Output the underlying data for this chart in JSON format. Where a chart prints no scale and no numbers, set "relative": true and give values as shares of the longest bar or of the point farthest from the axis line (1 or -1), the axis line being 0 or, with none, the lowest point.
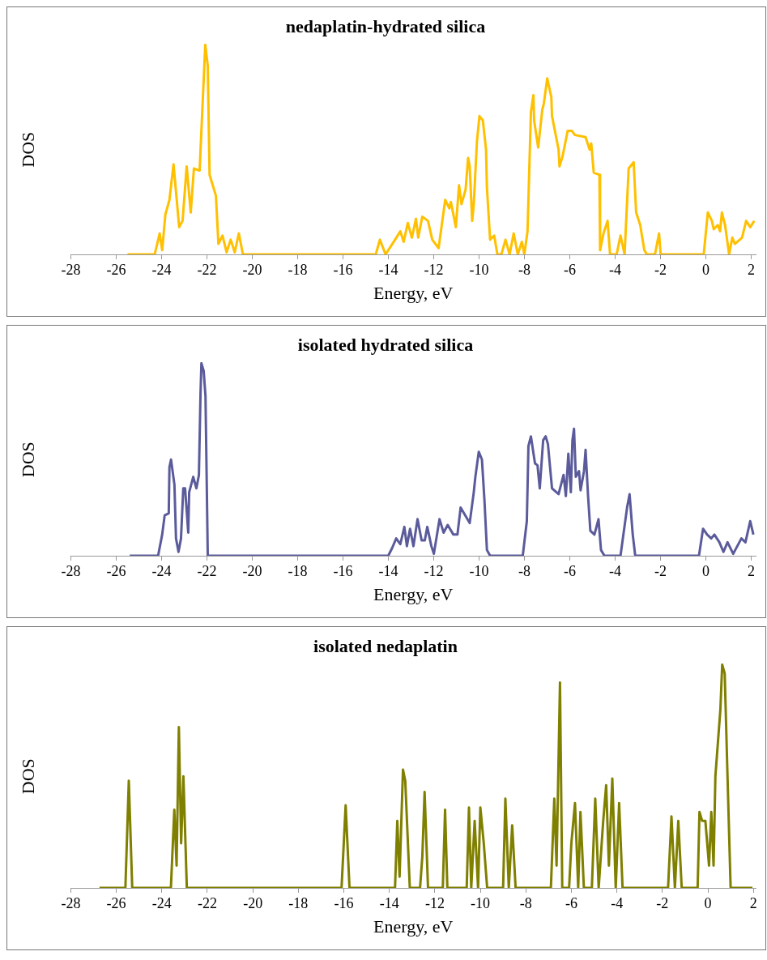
{
  "chart_data": [
    {
      "type": "line",
      "title": "nedaplatin-hydrated silica",
      "xlabel": "Energy, eV",
      "ylabel": "DOS",
      "relative": true,
      "color": "#ffc000",
      "marker": "none",
      "line_style": "solid",
      "xlim": [
        -28,
        2.2
      ],
      "xticks": [
        -28,
        -26,
        -24,
        -22,
        -20,
        -18,
        -16,
        -14,
        -12,
        -10,
        -8,
        -6,
        -4,
        -2,
        0,
        2
      ],
      "x": [
        -25.5,
        -24.3,
        -24.08,
        -23.97,
        -23.83,
        -23.65,
        -23.47,
        -23.22,
        -23.07,
        -22.89,
        -22.71,
        -22.57,
        -22.32,
        -22.17,
        -22.07,
        -21.96,
        -21.88,
        -21.6,
        -21.49,
        -21.31,
        -21.13,
        -20.95,
        -20.77,
        -20.59,
        -20.41,
        -14.55,
        -14.37,
        -14.12,
        -13.7,
        -13.47,
        -13.32,
        -13.14,
        -12.96,
        -12.78,
        -12.68,
        -12.5,
        -12.25,
        -12.06,
        -11.78,
        -11.49,
        -11.31,
        -11.24,
        -11.02,
        -10.88,
        -10.77,
        -10.59,
        -10.48,
        -10.41,
        -10.3,
        -10.23,
        -10.09,
        -9.98,
        -9.83,
        -9.69,
        -9.65,
        -9.51,
        -9.33,
        -9.19,
        -9.01,
        -8.83,
        -8.65,
        -8.47,
        -8.29,
        -8.11,
        -8.0,
        -7.86,
        -7.71,
        -7.6,
        -7.57,
        -7.39,
        -7.21,
        -7.14,
        -6.99,
        -6.81,
        -6.78,
        -6.49,
        -6.45,
        -6.31,
        -6.09,
        -5.91,
        -5.77,
        -5.3,
        -5.12,
        -5.05,
        -4.94,
        -4.69,
        -4.66,
        -4.51,
        -4.33,
        -4.22,
        -3.93,
        -3.76,
        -3.58,
        -3.4,
        -3.18,
        -3.07,
        -2.89,
        -2.71,
        -2.6,
        -2.24,
        -2.06,
        -1.99,
        -0.09,
        0.09,
        0.27,
        0.35,
        0.53,
        0.63,
        0.71,
        0.85,
        1.03,
        1.17,
        1.28,
        1.6,
        1.78,
        1.96,
        2.14
      ],
      "values": [
        0,
        0,
        0.1,
        0.02,
        0.19,
        0.26,
        0.43,
        0.13,
        0.16,
        0.42,
        0.2,
        0.41,
        0.4,
        0.76,
        1.0,
        0.9,
        0.38,
        0.28,
        0.05,
        0.09,
        0.01,
        0.07,
        0.01,
        0.1,
        0,
        0,
        0.07,
        0,
        0.07,
        0.11,
        0.06,
        0.15,
        0.08,
        0.17,
        0.08,
        0.18,
        0.16,
        0.07,
        0.03,
        0.26,
        0.22,
        0.25,
        0.13,
        0.33,
        0.24,
        0.31,
        0.46,
        0.42,
        0.16,
        0.24,
        0.54,
        0.66,
        0.64,
        0.5,
        0.32,
        0.07,
        0.09,
        0,
        0,
        0.07,
        0,
        0.1,
        0,
        0.06,
        0,
        0.11,
        0.68,
        0.76,
        0.64,
        0.51,
        0.69,
        0.72,
        0.84,
        0.75,
        0.66,
        0.5,
        0.42,
        0.47,
        0.59,
        0.59,
        0.57,
        0.56,
        0.5,
        0.53,
        0.39,
        0.38,
        0.02,
        0.1,
        0.16,
        0,
        0,
        0.09,
        0,
        0.41,
        0.44,
        0.2,
        0.14,
        0.02,
        0,
        0,
        0.1,
        0,
        0,
        0.2,
        0.16,
        0.12,
        0.14,
        0.11,
        0.2,
        0.14,
        0,
        0.08,
        0.05,
        0.08,
        0.16,
        0.13,
        0.16
      ]
    },
    {
      "type": "line",
      "title": "isolated hydrated silica",
      "xlabel": "Energy, eV",
      "ylabel": "DOS",
      "relative": true,
      "color": "#5b5b9b",
      "marker": "none",
      "line_style": "solid",
      "xlim": [
        -28,
        2.2
      ],
      "xticks": [
        -28,
        -26,
        -24,
        -22,
        -20,
        -18,
        -16,
        -14,
        -12,
        -10,
        -8,
        -6,
        -4,
        -2,
        0,
        2
      ],
      "x": [
        -25.4,
        -24.15,
        -23.97,
        -23.86,
        -23.68,
        -23.65,
        -23.58,
        -23.43,
        -23.36,
        -23.25,
        -23.14,
        -23.04,
        -22.96,
        -22.82,
        -22.78,
        -22.6,
        -22.46,
        -22.35,
        -22.28,
        -22.24,
        -22.14,
        -22.06,
        -21.99,
        -21.96,
        -14.0,
        -13.83,
        -13.65,
        -13.47,
        -13.29,
        -13.18,
        -13.04,
        -12.89,
        -12.71,
        -12.53,
        -12.39,
        -12.28,
        -12.1,
        -11.99,
        -11.74,
        -11.56,
        -11.38,
        -11.13,
        -10.95,
        -10.81,
        -10.41,
        -10.23,
        -10.16,
        -10.01,
        -9.87,
        -9.76,
        -9.65,
        -9.51,
        -8.07,
        -7.89,
        -7.82,
        -7.71,
        -7.53,
        -7.42,
        -7.32,
        -7.17,
        -7.06,
        -6.96,
        -6.78,
        -6.49,
        -6.27,
        -6.17,
        -6.06,
        -5.95,
        -5.88,
        -5.81,
        -5.73,
        -5.59,
        -5.52,
        -5.37,
        -5.3,
        -5.19,
        -5.09,
        -4.91,
        -4.73,
        -4.62,
        -4.47,
        -3.76,
        -3.47,
        -3.36,
        -3.22,
        -3.11,
        -0.3,
        -0.12,
        0.06,
        0.24,
        0.38,
        0.6,
        0.78,
        0.96,
        1.21,
        1.57,
        1.75,
        1.96,
        2.1
      ],
      "values": [
        0,
        0,
        0.11,
        0.21,
        0.22,
        0.46,
        0.5,
        0.37,
        0.09,
        0.02,
        0.09,
        0.35,
        0.35,
        0.12,
        0.33,
        0.41,
        0.35,
        0.42,
        0.84,
        1.0,
        0.96,
        0.83,
        0.25,
        0,
        0,
        0.04,
        0.09,
        0.06,
        0.15,
        0.05,
        0.14,
        0.05,
        0.19,
        0.08,
        0.08,
        0.15,
        0.05,
        0.01,
        0.19,
        0.12,
        0.16,
        0.11,
        0.11,
        0.25,
        0.17,
        0.33,
        0.41,
        0.54,
        0.5,
        0.29,
        0.03,
        0,
        0,
        0.18,
        0.57,
        0.62,
        0.48,
        0.47,
        0.35,
        0.6,
        0.62,
        0.58,
        0.35,
        0.32,
        0.42,
        0.31,
        0.53,
        0.33,
        0.6,
        0.66,
        0.41,
        0.44,
        0.34,
        0.44,
        0.55,
        0.31,
        0.13,
        0.11,
        0.19,
        0.03,
        0,
        0,
        0.25,
        0.32,
        0.11,
        0,
        0,
        0.14,
        0.11,
        0.09,
        0.11,
        0.07,
        0.02,
        0.07,
        0.01,
        0.09,
        0.07,
        0.18,
        0.11
      ]
    },
    {
      "type": "line",
      "title": "isolated nedaplatin",
      "xlabel": "Energy, eV",
      "ylabel": "DOS",
      "relative": true,
      "color": "#7f7f00",
      "marker": "none",
      "line_style": "solid",
      "xlim": [
        -28,
        2.1
      ],
      "xticks": [
        -28,
        -26,
        -24,
        -22,
        -20,
        -18,
        -16,
        -14,
        -12,
        -10,
        -8,
        -6,
        -4,
        -2,
        0,
        2
      ],
      "x": [
        -26.74,
        -25.6,
        -25.45,
        -25.3,
        -23.6,
        -23.45,
        -23.35,
        -23.25,
        -23.15,
        -23.05,
        -22.9,
        -16.1,
        -15.92,
        -15.75,
        -13.75,
        -13.65,
        -13.55,
        -13.4,
        -13.3,
        -13.1,
        -12.65,
        -12.55,
        -12.45,
        -12.3,
        -11.65,
        -11.55,
        -11.45,
        -10.6,
        -10.5,
        -10.4,
        -10.25,
        -10.1,
        -10.0,
        -9.85,
        -9.7,
        -9.0,
        -8.9,
        -8.75,
        -8.6,
        -8.45,
        -6.9,
        -6.75,
        -6.65,
        -6.5,
        -6.4,
        -6.1,
        -6.0,
        -5.84,
        -5.7,
        -5.6,
        -5.45,
        -5.1,
        -4.95,
        -4.8,
        -4.6,
        -4.47,
        -4.35,
        -4.2,
        -4.05,
        -3.9,
        -3.75,
        -1.75,
        -1.6,
        -1.45,
        -1.3,
        -1.15,
        -0.45,
        -0.37,
        -0.25,
        -0.11,
        0.05,
        0.15,
        0.25,
        0.33,
        0.55,
        0.63,
        0.74,
        0.89,
        1.0,
        1.96
      ],
      "values": [
        0,
        0,
        0.48,
        0,
        0,
        0.35,
        0.1,
        0.72,
        0.2,
        0.5,
        0,
        0,
        0.37,
        0,
        0,
        0.3,
        0.05,
        0.53,
        0.48,
        0,
        0,
        0.14,
        0.43,
        0,
        0,
        0.35,
        0,
        0,
        0.36,
        0,
        0.3,
        0,
        0.36,
        0.2,
        0,
        0,
        0.4,
        0,
        0.28,
        0,
        0,
        0.4,
        0.1,
        0.92,
        0,
        0,
        0.2,
        0.38,
        0,
        0.34,
        0,
        0,
        0.4,
        0,
        0.3,
        0.46,
        0.1,
        0.49,
        0,
        0.38,
        0,
        0,
        0.32,
        0,
        0.3,
        0,
        0,
        0.34,
        0.3,
        0.3,
        0.1,
        0.34,
        0.1,
        0.5,
        0.8,
        1.0,
        0.96,
        0.4,
        0,
        0
      ]
    }
  ]
}
